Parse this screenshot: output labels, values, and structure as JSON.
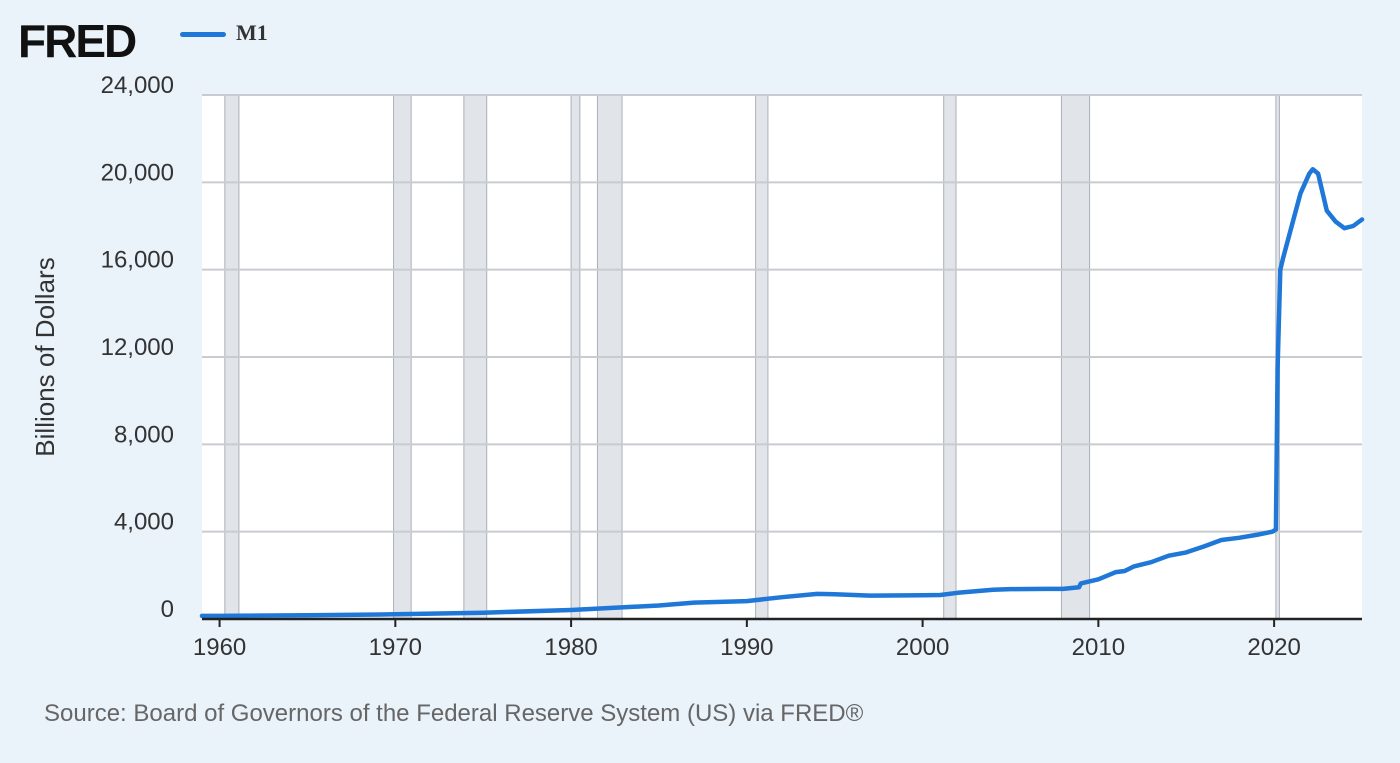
{
  "header": {
    "logo": "FRED",
    "legend_label": "M1"
  },
  "chart_data": {
    "type": "line",
    "title": "M1",
    "xlabel": "",
    "ylabel": "Billions of Dollars",
    "xlim": [
      1959,
      2025
    ],
    "ylim": [
      0,
      24000
    ],
    "x_ticks": [
      1960,
      1970,
      1980,
      1990,
      2000,
      2010,
      2020
    ],
    "y_ticks": [
      0,
      4000,
      8000,
      12000,
      16000,
      20000,
      24000
    ],
    "x_tick_labels": [
      "1960",
      "1970",
      "1980",
      "1990",
      "2000",
      "2010",
      "2020"
    ],
    "y_tick_labels": [
      "0",
      "4,000",
      "8,000",
      "12,000",
      "16,000",
      "20,000",
      "24,000"
    ],
    "recessions": [
      [
        1960.3,
        1961.1
      ],
      [
        1969.9,
        1970.9
      ],
      [
        1973.9,
        1975.2
      ],
      [
        1980.0,
        1980.5
      ],
      [
        1981.5,
        1982.9
      ],
      [
        1990.5,
        1991.2
      ],
      [
        2001.2,
        2001.9
      ],
      [
        2007.9,
        2009.5
      ],
      [
        2020.1,
        2020.3
      ]
    ],
    "series": [
      {
        "name": "M1",
        "color": "#1f78d8",
        "x": [
          1959,
          1960,
          1965,
          1970,
          1975,
          1980,
          1985,
          1987,
          1990,
          1992,
          1994,
          1995,
          1997,
          2000,
          2001,
          2002,
          2004,
          2005,
          2007,
          2008,
          2008.9,
          2009,
          2010,
          2011,
          2011.5,
          2012,
          2013,
          2014,
          2015,
          2016,
          2017,
          2018,
          2019,
          2019.9,
          2020.1,
          2020.2,
          2020.35,
          2020.5,
          2021,
          2021.5,
          2022,
          2022.2,
          2022.5,
          2023,
          2023.5,
          2024,
          2024.5,
          2025
        ],
        "values": [
          140,
          140,
          170,
          215,
          290,
          410,
          620,
          750,
          820,
          1000,
          1150,
          1130,
          1070,
          1090,
          1100,
          1200,
          1340,
          1370,
          1380,
          1380,
          1450,
          1630,
          1820,
          2150,
          2200,
          2400,
          2600,
          2900,
          3050,
          3320,
          3620,
          3720,
          3850,
          4000,
          4100,
          11500,
          16000,
          16500,
          18000,
          19500,
          20400,
          20600,
          20400,
          18700,
          18200,
          17900,
          18000,
          18300
        ]
      }
    ]
  },
  "source_text": "Source: Board of Governors of the Federal Reserve System (US) via FRED®"
}
